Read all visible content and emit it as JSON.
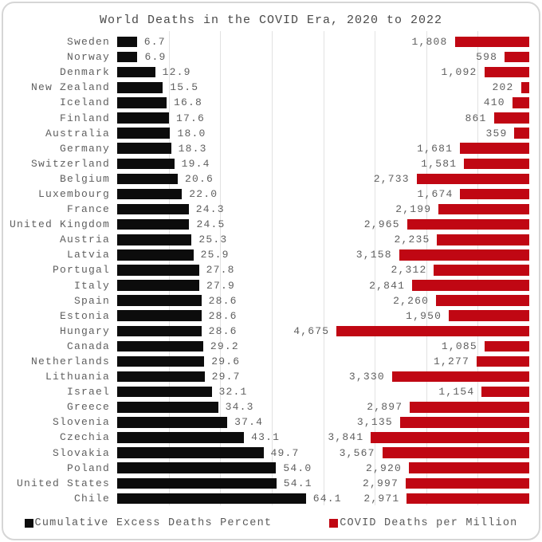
{
  "title": "World Deaths in the COVID Era, 2020 to 2022",
  "colors": {
    "excess_bar": "#0c0c0c",
    "covid_bar": "#c00713",
    "text": "#5f5f5f",
    "gridline": "#e2e2e2"
  },
  "chart_data": {
    "type": "bar",
    "orientation": "horizontal",
    "title": "World Deaths in the COVID Era, 2020 to 2022",
    "grid": "vertical",
    "legend_position": "bottom",
    "categories": [
      "Sweden",
      "Norway",
      "Denmark",
      "New Zealand",
      "Iceland",
      "Finland",
      "Australia",
      "Germany",
      "Switzerland",
      "Belgium",
      "Luxembourg",
      "France",
      "United Kingdom",
      "Austria",
      "Latvia",
      "Portugal",
      "Italy",
      "Spain",
      "Estonia",
      "Hungary",
      "Canada",
      "Netherlands",
      "Lithuania",
      "Israel",
      "Greece",
      "Slovenia",
      "Czechia",
      "Slovakia",
      "Poland",
      "United States",
      "Chile"
    ],
    "series": [
      {
        "name": "Cumulative Excess Deaths Percent",
        "color": "#0c0c0c",
        "direction": "left-to-right",
        "axis_max": 70,
        "value_format": "fixed1",
        "values": [
          6.7,
          6.9,
          12.9,
          15.5,
          16.8,
          17.6,
          18.0,
          18.3,
          19.4,
          20.6,
          22.0,
          24.3,
          24.5,
          25.3,
          25.9,
          27.8,
          27.9,
          28.6,
          28.6,
          28.6,
          29.2,
          29.6,
          29.7,
          32.1,
          34.3,
          37.4,
          43.1,
          49.7,
          54.0,
          54.1,
          64.1
        ]
      },
      {
        "name": "COVID Deaths per Million",
        "color": "#c00713",
        "direction": "right-to-left",
        "axis_max": 5000,
        "value_format": "thousands",
        "values": [
          1808,
          598,
          1092,
          202,
          410,
          861,
          359,
          1681,
          1581,
          2733,
          1674,
          2199,
          2965,
          2235,
          3158,
          2312,
          2841,
          2260,
          1950,
          4675,
          1085,
          1277,
          3330,
          1154,
          2897,
          3135,
          3841,
          3567,
          2920,
          2997,
          2971
        ]
      }
    ]
  }
}
